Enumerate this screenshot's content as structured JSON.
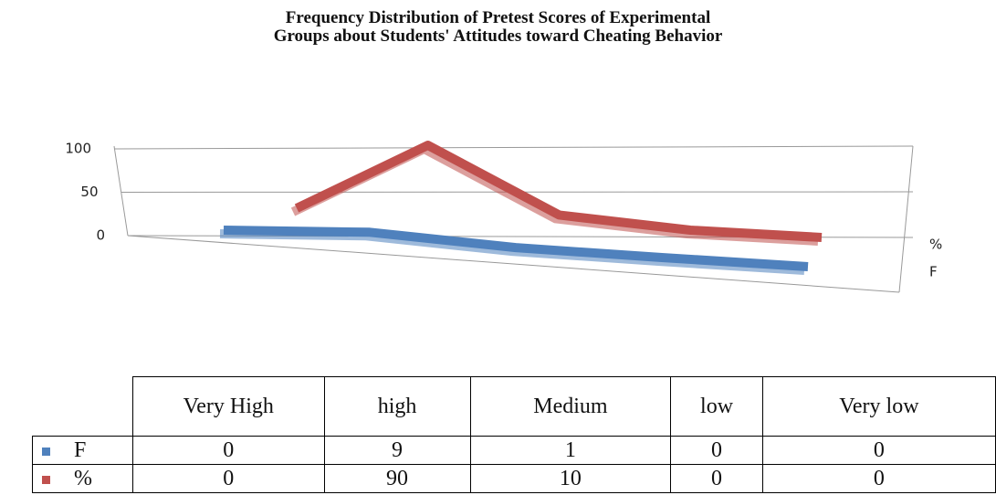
{
  "chart_data": {
    "type": "line",
    "title": [
      "Frequency Distribution of Pretest Scores of Experimental",
      "Groups about Students' Attitudes toward Cheating Behavior"
    ],
    "categories": [
      "Very High",
      "high",
      "Medium",
      "low",
      "Very low"
    ],
    "series": [
      {
        "name": "F",
        "color": "#4f81bd",
        "values": [
          0,
          9,
          1,
          0,
          0
        ]
      },
      {
        "name": "%",
        "color": "#c0504d",
        "values": [
          0,
          90,
          10,
          0,
          0
        ]
      }
    ],
    "ylim": [
      0,
      100
    ],
    "yticks": [
      0,
      50,
      100
    ],
    "grid": true
  }
}
